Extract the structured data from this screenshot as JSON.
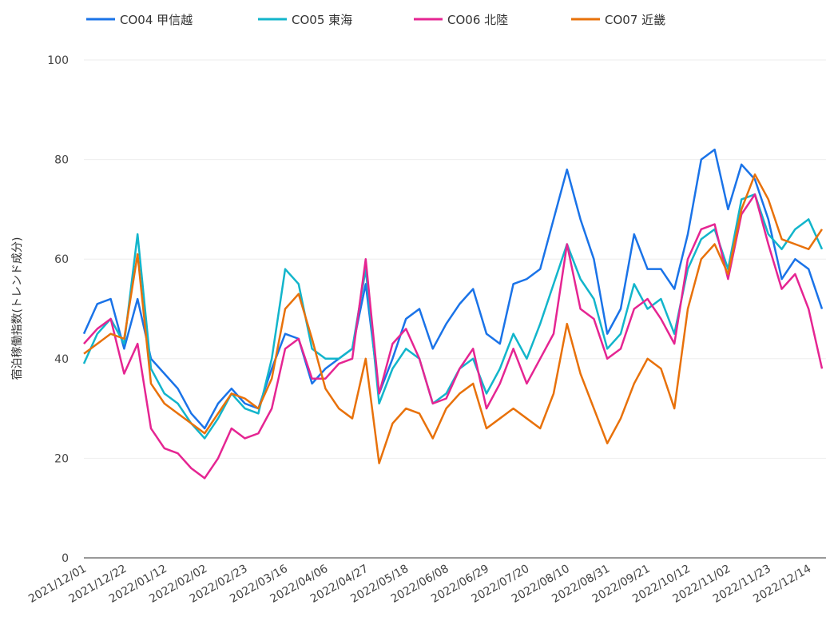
{
  "chart_data": {
    "type": "line",
    "y_label": "宿泊稼働指数(トレンド成分)",
    "categories": [
      "2021/12/01",
      null,
      null,
      "2021/12/22",
      null,
      null,
      "2022/01/12",
      null,
      null,
      "2022/02/02",
      null,
      null,
      "2022/02/23",
      null,
      null,
      "2022/03/16",
      null,
      null,
      "2022/04/06",
      null,
      null,
      "2022/04/27",
      null,
      null,
      "2022/05/18",
      null,
      null,
      "2022/06/08",
      null,
      null,
      "2022/06/29",
      null,
      null,
      "2022/07/20",
      null,
      null,
      "2022/08/10",
      null,
      null,
      "2022/08/31",
      null,
      null,
      "2022/09/21",
      null,
      null,
      "2022/10/12",
      null,
      null,
      "2022/11/02",
      null,
      null,
      "2022/11/23",
      null,
      null,
      "2022/12/14",
      null
    ],
    "series": [
      {
        "name": "CO04 甲信越",
        "color": "#1a73e8",
        "values": [
          45,
          51,
          52,
          42,
          52,
          40,
          37,
          34,
          29,
          26,
          31,
          34,
          31,
          30,
          38,
          45,
          44,
          35,
          38,
          40,
          42,
          55,
          33,
          40,
          48,
          50,
          42,
          47,
          51,
          54,
          45,
          43,
          55,
          56,
          58,
          68,
          78,
          68,
          60,
          45,
          50,
          65,
          58,
          58,
          54,
          65,
          80,
          82,
          70,
          79,
          76,
          68,
          56,
          60,
          58,
          50
        ]
      },
      {
        "name": "CO05 東海",
        "color": "#12b5cb",
        "values": [
          39,
          45,
          48,
          43,
          65,
          38,
          33,
          31,
          27,
          24,
          28,
          33,
          30,
          29,
          40,
          58,
          55,
          42,
          40,
          40,
          42,
          58,
          31,
          38,
          42,
          40,
          31,
          33,
          38,
          40,
          33,
          38,
          45,
          40,
          47,
          55,
          63,
          56,
          52,
          42,
          45,
          55,
          50,
          52,
          45,
          58,
          64,
          66,
          58,
          72,
          73,
          65,
          62,
          66,
          68,
          62
        ]
      },
      {
        "name": "CO06 北陸",
        "color": "#e52592",
        "values": [
          43,
          46,
          48,
          37,
          43,
          26,
          22,
          21,
          18,
          16,
          20,
          26,
          24,
          25,
          30,
          42,
          44,
          36,
          36,
          39,
          40,
          60,
          33,
          43,
          46,
          40,
          31,
          32,
          38,
          42,
          30,
          35,
          42,
          35,
          40,
          45,
          63,
          50,
          48,
          40,
          42,
          50,
          52,
          48,
          43,
          60,
          66,
          67,
          56,
          69,
          73,
          63,
          54,
          57,
          50,
          38
        ]
      },
      {
        "name": "CO07 近畿",
        "color": "#e8710a",
        "values": [
          41,
          43,
          45,
          44,
          61,
          35,
          31,
          29,
          27,
          25,
          29,
          33,
          32,
          30,
          36,
          50,
          53,
          44,
          34,
          30,
          28,
          40,
          19,
          27,
          30,
          29,
          24,
          30,
          33,
          35,
          26,
          28,
          30,
          28,
          26,
          33,
          47,
          37,
          30,
          23,
          28,
          35,
          40,
          38,
          30,
          50,
          60,
          63,
          57,
          70,
          77,
          72,
          64,
          63,
          62,
          66
        ]
      }
    ],
    "ylim": [
      0,
      100
    ],
    "yticks": [
      0,
      20,
      40,
      60,
      80,
      100
    ],
    "grid": true
  }
}
